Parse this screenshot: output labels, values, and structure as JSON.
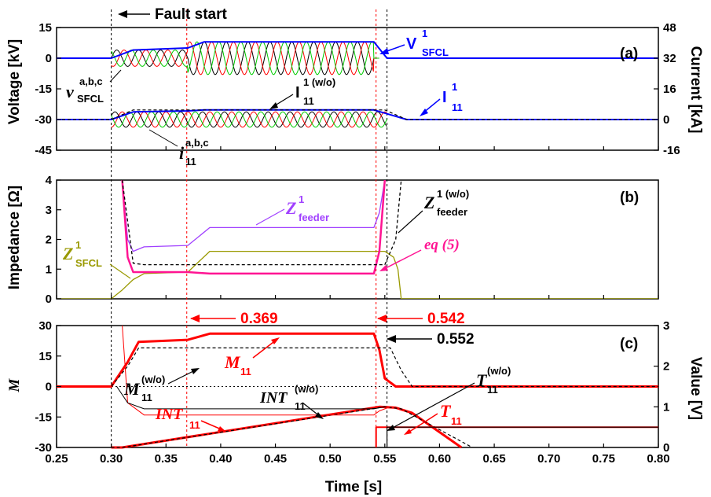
{
  "colors": {
    "black": "#000000",
    "blue": "#0000ff",
    "red": "#ff0000",
    "green": "#00cc00",
    "purple": "#a040ff",
    "magenta": "#ff1493",
    "olive": "#999900"
  },
  "chart_data": [
    {
      "panel": "(a)",
      "type": "line",
      "xlim": [
        0.25,
        0.8
      ],
      "ylabel_left": "Voltage [kV]",
      "ylabel_right": "Current [kA]",
      "ylim_left": [
        -45,
        15
      ],
      "ylim_right": [
        -16,
        48
      ],
      "yticks_left": [
        "15",
        "0",
        "-15",
        "-30",
        "-45"
      ],
      "yticks_right": [
        "48",
        "32",
        "16",
        "0",
        "-16"
      ],
      "fault_start_label": "Fault start",
      "annotations": {
        "v_sfcl_main": "v",
        "v_sfcl_sup": "a,b,c",
        "v_sfcl_sub": "SFCL",
        "V_sfcl_main": "V",
        "V_sfcl_sup": "1",
        "V_sfcl_sub": "SFCL",
        "I11wo_main": "I",
        "I11wo_sup": "1 (w/o)",
        "I11wo_sub": "11",
        "I11_main": "I",
        "I11_sup": "1",
        "I11_sub": "11",
        "i11_main": "i",
        "i11_sup": "a,b,c",
        "i11_sub": "11"
      },
      "series": [
        {
          "name": "V¹SFCL",
          "color": "#0000ff",
          "x": [
            0.25,
            0.3,
            0.32,
            0.37,
            0.385,
            0.54,
            0.552,
            0.8
          ],
          "y": [
            0,
            0,
            4,
            5,
            8,
            8,
            0,
            0
          ]
        },
        {
          "name": "I¹₁₁",
          "color": "#0000ff",
          "x": [
            0.25,
            0.3,
            0.32,
            0.37,
            0.385,
            0.54,
            0.552,
            0.57,
            0.8
          ],
          "y": [
            0,
            0,
            4,
            4.5,
            5,
            5,
            3,
            0,
            0
          ]
        },
        {
          "name": "I¹₁₁(w/o)",
          "color": "#000000",
          "x": [
            0.25,
            0.3,
            0.32,
            0.55,
            0.57,
            0.8
          ],
          "y": [
            0,
            0,
            5,
            5,
            0,
            0
          ]
        }
      ]
    },
    {
      "panel": "(b)",
      "type": "line",
      "xlim": [
        0.25,
        0.8
      ],
      "ylabel_left": "Impedance [Ω]",
      "ylim_left": [
        0,
        4
      ],
      "yticks_left": [
        "4",
        "3",
        "2",
        "1",
        "0"
      ],
      "annotations": {
        "Zfeeder_main": "Z",
        "Zfeeder_sup": "1",
        "Zfeeder_sub": "feeder",
        "Zfeederwo_main": "Z",
        "Zfeederwo_sup": "1 (w/o)",
        "Zfeederwo_sub": "feeder",
        "Zsfcl_main": "Z",
        "Zsfcl_sup": "1",
        "Zsfcl_sub": "SFCL",
        "eq5": "eq (5)"
      },
      "series": [
        {
          "name": "Z¹feeder",
          "color": "#a040ff",
          "x": [
            0.31,
            0.315,
            0.32,
            0.33,
            0.37,
            0.39,
            0.54,
            0.545,
            0.55
          ],
          "y": [
            4,
            2,
            1.6,
            1.75,
            1.8,
            2.4,
            2.4,
            2.9,
            4
          ]
        },
        {
          "name": "Z¹SFCL",
          "color": "#999900",
          "x": [
            0.25,
            0.3,
            0.31,
            0.32,
            0.33,
            0.37,
            0.39,
            0.55,
            0.558,
            0.562,
            0.565,
            0.8
          ],
          "y": [
            0,
            0,
            0.3,
            0.65,
            0.85,
            0.9,
            1.6,
            1.6,
            1.4,
            1.0,
            0,
            0
          ]
        },
        {
          "name": "eq (5)",
          "color": "#ff1493",
          "x": [
            0.31,
            0.315,
            0.32,
            0.33,
            0.37,
            0.39,
            0.54,
            0.545,
            0.55
          ],
          "y": [
            4,
            1.4,
            0.9,
            0.9,
            0.9,
            0.85,
            0.85,
            1.6,
            4
          ]
        },
        {
          "name": "Z¹feeder(w/o)",
          "color": "#000000",
          "x": [
            0.31,
            0.32,
            0.33,
            0.55,
            0.56,
            0.565
          ],
          "y": [
            4,
            1.2,
            1.15,
            1.15,
            2.0,
            4
          ]
        }
      ]
    },
    {
      "panel": "(c)",
      "type": "line",
      "xlim": [
        0.25,
        0.8
      ],
      "xlabel": "Time [s]",
      "xticks": [
        "0.25",
        "0.30",
        "0.35",
        "0.40",
        "0.45",
        "0.50",
        "0.55",
        "0.60",
        "0.65",
        "0.70",
        "0.75",
        "0.80"
      ],
      "ylabel_left": "M",
      "ylabel_right": "Value [V]",
      "ylim_left": [
        -30,
        30
      ],
      "ylim_right": [
        0,
        3
      ],
      "yticks_left": [
        "30",
        "15",
        "0",
        "-15",
        "-30"
      ],
      "yticks_right": [
        "3",
        "2",
        "1",
        "0"
      ],
      "time_marks": {
        "t0369": "0.369",
        "t0542": "0.542",
        "t0552": "0.552"
      },
      "annotations": {
        "M11wo_main": "M",
        "M11wo_sup": "(w/o)",
        "M11wo_sub": "11",
        "M11_main": "M",
        "M11_sub": "11",
        "INT11wo_main": "INT",
        "INT11wo_sup": "(w/o)",
        "INT11wo_sub": "11",
        "INT11_main": "INT",
        "INT11_sub": "11",
        "T11wo_main": "T",
        "T11wo_sup": "(w/o)",
        "T11wo_sub": "11",
        "T11_main": "T",
        "T11_sub": "11"
      },
      "series": [
        {
          "name": "M₁₁",
          "color": "#ff0000",
          "x": [
            0.25,
            0.3,
            0.315,
            0.325,
            0.37,
            0.39,
            0.54,
            0.545,
            0.55,
            0.56,
            0.8
          ],
          "y": [
            0,
            0,
            12,
            22,
            23,
            26,
            26,
            18,
            4,
            0,
            0
          ]
        },
        {
          "name": "M₁₁(w/o)",
          "color": "#000000",
          "x": [
            0.25,
            0.3,
            0.315,
            0.325,
            0.54,
            0.555,
            0.565,
            0.575,
            0.8
          ],
          "y": [
            0,
            0,
            10,
            19,
            19,
            19,
            8,
            0,
            0
          ]
        },
        {
          "name": "INT₁₁ (Value)",
          "color": "#ff0000",
          "x": [
            0.3,
            0.31,
            0.545,
            0.56,
            0.575,
            0.62
          ],
          "y": [
            0,
            0,
            1.0,
            0.98,
            0.85,
            0
          ]
        },
        {
          "name": "INT₁₁(w/o) (Value)",
          "color": "#000000",
          "x": [
            0.3,
            0.31,
            0.55,
            0.565,
            0.63
          ],
          "y": [
            0,
            0,
            1.0,
            0.95,
            0
          ]
        },
        {
          "name": "T₁₁ (Value)",
          "color": "#ff0000",
          "x": [
            0.542,
            0.542,
            0.8
          ],
          "y": [
            0,
            0.5,
            0.5
          ]
        },
        {
          "name": "T₁₁(w/o) (Value)",
          "color": "#000000",
          "x": [
            0.552,
            0.552,
            0.8
          ],
          "y": [
            0,
            0.5,
            0.5
          ]
        }
      ]
    }
  ]
}
